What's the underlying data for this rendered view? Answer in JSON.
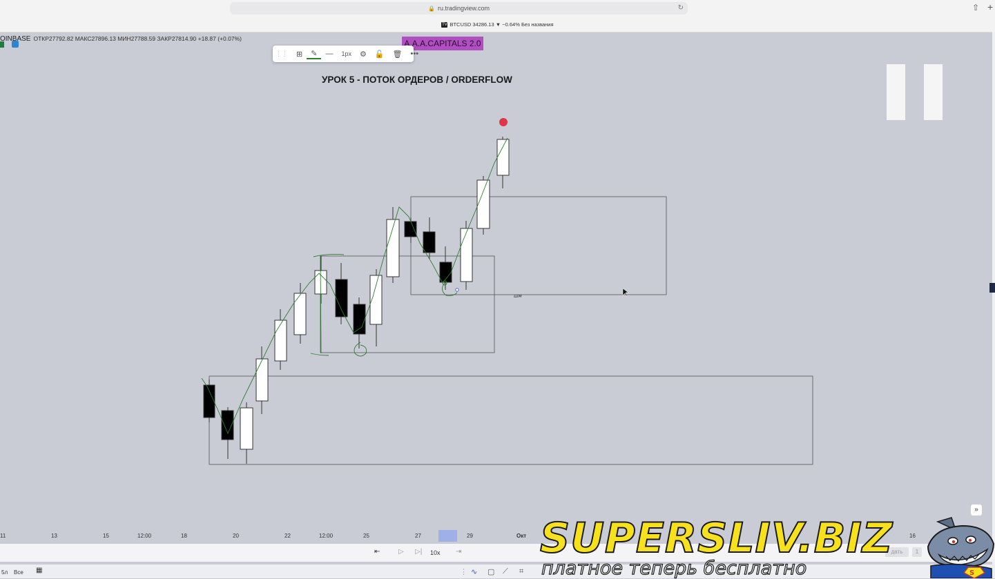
{
  "browser": {
    "url": "ru.tradingview.com",
    "share_icon": "share-icon",
    "new_tab_icon": "plus-icon"
  },
  "tab": {
    "title": "BTCUSD 34286.13 ▼ −0.64% Без названия",
    "logo": "TV"
  },
  "header": {
    "symbol": "OINBASE",
    "ohlc": "ОТКР27792.82  МАКС27896.13  МИН27788.59  ЗАКР27814.90  +18.87 (+0.07%)"
  },
  "drawing_toolbar": {
    "width_label": "1px",
    "line_color": "#2e7d32"
  },
  "watermark_tag": {
    "text": "A.A.A.CAPITALS 2.0",
    "color": "#b04fc0"
  },
  "lesson_title": "УРОК 5 -  ПОТОК ОРДЕРОВ / ORDERFLOW",
  "annotation": "шм",
  "time_axis": {
    "ticks": [
      "11",
      "13",
      "15",
      "12:00",
      "18",
      "20",
      "22",
      "12:00",
      "25",
      "27",
      "29",
      "Окт",
      "16"
    ]
  },
  "replay_bar": {
    "speed": "10x"
  },
  "bottom_bar": {
    "range_1": "5л",
    "range_2": "Все"
  },
  "promo": {
    "title": "SUPERSLIV.BIZ",
    "subtitle": "платное теперь бесплатно",
    "faded_button": "дать",
    "faded_button_2": "1"
  },
  "colors": {
    "background": "#c9ccd5",
    "bull_candle": "#ffffff",
    "bear_candle": "#000000",
    "marker": "#e0344b",
    "stroke": "#2e7d32"
  }
}
